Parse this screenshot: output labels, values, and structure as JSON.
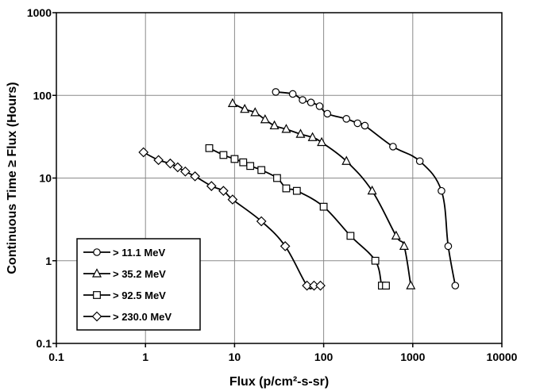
{
  "chart_data": {
    "type": "line",
    "xlabel": "Flux (p/cm²-s-sr)",
    "ylabel": "Continuous Time ≥ Flux (Hours)",
    "x_scale": "log",
    "y_scale": "log",
    "xlim": [
      0.1,
      10000
    ],
    "ylim": [
      0.1,
      1000
    ],
    "x_ticks": [
      "0.1",
      "1",
      "10",
      "100",
      "1000",
      "10000"
    ],
    "y_ticks": [
      "0.1",
      "1",
      "10",
      "100",
      "1000"
    ],
    "grid": true,
    "legend_position": "bottom-left",
    "series": [
      {
        "name": "> 11.1 MeV",
        "marker": "circle",
        "x": [
          29,
          45,
          58,
          72,
          90,
          110,
          180,
          240,
          290,
          600,
          1200,
          2100,
          2500,
          3000
        ],
        "y": [
          110,
          104,
          88,
          82,
          74,
          60,
          52,
          46,
          43,
          24,
          16,
          7,
          1.5,
          0.5
        ]
      },
      {
        "name": "> 35.2 MeV",
        "marker": "triangle",
        "x": [
          9.5,
          13,
          17,
          22,
          28,
          38,
          55,
          75,
          95,
          180,
          350,
          650,
          800,
          950
        ],
        "y": [
          80,
          68,
          62,
          51,
          43,
          39,
          34,
          31,
          27,
          16,
          7,
          2,
          1.5,
          0.5
        ]
      },
      {
        "name": "> 92.5 MeV",
        "marker": "square",
        "x": [
          5.2,
          7.5,
          10,
          12.5,
          15,
          20,
          30,
          38,
          50,
          100,
          200,
          380,
          450,
          500
        ],
        "y": [
          23,
          19,
          17,
          15.5,
          14,
          12.5,
          10,
          7.5,
          7,
          4.5,
          2,
          1,
          0.5,
          0.5
        ]
      },
      {
        "name": "> 230.0 MeV",
        "marker": "diamond",
        "x": [
          0.95,
          1.4,
          1.9,
          2.3,
          2.8,
          3.6,
          5.5,
          7.5,
          9.5,
          20,
          37,
          65,
          78,
          92
        ],
        "y": [
          20.5,
          16.5,
          15,
          13.5,
          12,
          10.5,
          8,
          7,
          5.5,
          3,
          1.5,
          0.5,
          0.5,
          0.5
        ]
      }
    ]
  }
}
